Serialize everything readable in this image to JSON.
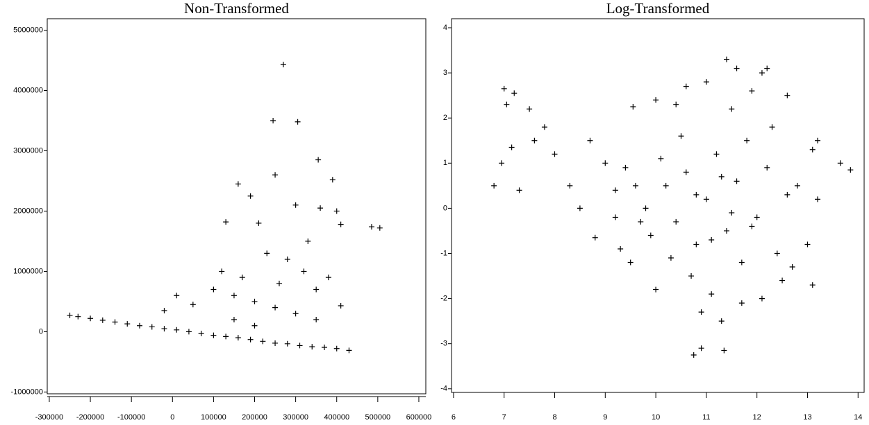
{
  "chart_data": [
    {
      "type": "scatter",
      "title": "Non-Transformed",
      "color": "#000000",
      "xlim": [
        -305000,
        617000
      ],
      "ylim": [
        -1030000,
        5190000
      ],
      "xticks": [
        -300000,
        -200000,
        -100000,
        0,
        100000,
        200000,
        300000,
        400000,
        500000,
        600000
      ],
      "yticks": [
        -1000000,
        0,
        1000000,
        2000000,
        3000000,
        4000000,
        5000000
      ],
      "x": [
        -250000,
        -230000,
        -200000,
        -170000,
        -140000,
        -110000,
        -80000,
        -50000,
        -20000,
        10000,
        40000,
        70000,
        100000,
        130000,
        160000,
        190000,
        220000,
        250000,
        280000,
        310000,
        340000,
        370000,
        400000,
        430000,
        270000,
        245000,
        305000,
        355000,
        160000,
        250000,
        390000,
        485000,
        505000,
        400000,
        410000,
        300000,
        190000,
        130000,
        210000,
        330000,
        360000,
        230000,
        120000,
        170000,
        280000,
        100000,
        150000,
        200000,
        250000,
        300000,
        350000,
        200000,
        150000,
        -20000,
        10000,
        50000,
        380000,
        410000,
        350000,
        320000,
        260000
      ],
      "values": [
        270000,
        250000,
        220000,
        190000,
        160000,
        130000,
        100000,
        80000,
        50000,
        30000,
        0,
        -30000,
        -60000,
        -80000,
        -100000,
        -130000,
        -160000,
        -190000,
        -200000,
        -230000,
        -250000,
        -260000,
        -280000,
        -310000,
        4430000,
        3500000,
        3480000,
        2850000,
        2450000,
        2600000,
        2520000,
        1740000,
        1720000,
        2000000,
        1780000,
        2100000,
        2250000,
        1820000,
        1800000,
        1500000,
        2050000,
        1300000,
        1000000,
        900000,
        1200000,
        700000,
        600000,
        500000,
        400000,
        300000,
        200000,
        100000,
        200000,
        350000,
        600000,
        450000,
        900000,
        430000,
        700000,
        1000000,
        800000
      ]
    },
    {
      "type": "scatter",
      "title": "Log-Transformed",
      "color": "#000000",
      "xlim": [
        5.96,
        14.12
      ],
      "ylim": [
        -4.08,
        4.2
      ],
      "xticks": [
        6,
        7,
        8,
        9,
        10,
        11,
        12,
        13,
        14
      ],
      "yticks": [
        -4,
        -3,
        -2,
        -1,
        0,
        1,
        2,
        3,
        4
      ],
      "x": [
        6.8,
        7,
        7.2,
        7.05,
        7.15,
        6.95,
        7.3,
        7.5,
        7.8,
        7.6,
        8,
        8.3,
        8.5,
        8.8,
        8.7,
        9.2,
        9,
        9.3,
        9.55,
        10.75,
        10.9,
        11.35,
        13.65,
        13.85,
        11.4,
        12.1,
        13.2,
        9.5,
        13.1,
        10,
        10.2,
        10.4,
        10.6,
        10.8,
        11,
        11.2,
        11.4,
        11.6,
        11.8,
        12,
        12.2,
        12.4,
        12.6,
        10.5,
        10.7,
        11.1,
        11.5,
        11.7,
        11.9,
        12.3,
        12.5,
        12.8,
        13,
        13.2,
        9.8,
        9.9,
        10.1,
        10.3,
        9.6,
        9.7,
        10.9,
        11.3,
        11,
        10.6,
        11.6,
        12.2,
        12.6,
        10,
        11.7,
        12.1,
        10.4,
        11.3,
        11.5,
        10.8,
        11.1,
        11.9,
        12.7,
        13.1,
        9.4,
        9.2
      ],
      "values": [
        0.5,
        2.65,
        2.55,
        2.3,
        1.35,
        1,
        0.4,
        2.2,
        1.8,
        1.5,
        1.2,
        0.5,
        0,
        -0.65,
        1.5,
        0.4,
        1,
        -0.9,
        2.25,
        -3.25,
        -3.1,
        -3.15,
        1,
        0.85,
        3.3,
        3,
        1.5,
        -1.2,
        -1.7,
        2.4,
        0.5,
        -0.3,
        0.8,
        -0.8,
        0.2,
        1.2,
        -0.5,
        0.6,
        1.5,
        -0.2,
        0.9,
        -1,
        0.3,
        1.6,
        -1.5,
        -1.9,
        2.2,
        -1.2,
        2.6,
        1.8,
        -1.6,
        0.5,
        -0.8,
        0.2,
        0,
        -0.6,
        1.1,
        -1.1,
        0.5,
        -0.3,
        -2.3,
        -2.5,
        2.8,
        2.7,
        3.1,
        3.1,
        2.5,
        -1.8,
        -2.1,
        -2,
        2.3,
        0.7,
        -0.1,
        0.3,
        -0.7,
        -0.4,
        -1.3,
        1.3,
        0.9,
        -0.2
      ]
    }
  ]
}
